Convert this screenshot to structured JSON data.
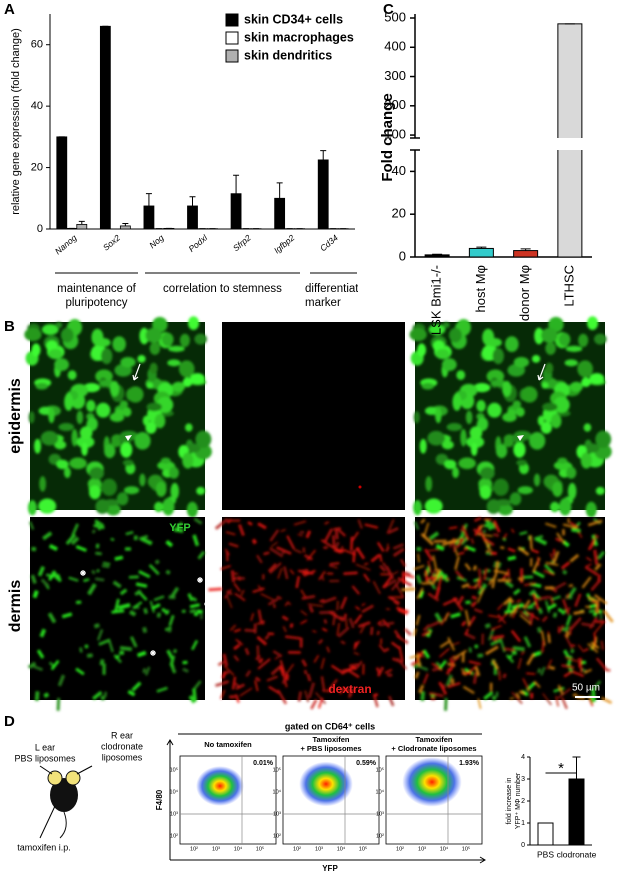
{
  "panel_labels": [
    "A",
    "B",
    "C",
    "D"
  ],
  "chart_data": [
    {
      "type": "bar",
      "ylabel": "relative gene expression (fold change)",
      "categories": [
        "Nanog",
        "Sox2",
        "Nog",
        "Podxl",
        "Sfrp2",
        "Igfbp2",
        "Cd34"
      ],
      "series": [
        {
          "name": "skin CD34+ cells",
          "color": "#000000",
          "values": [
            30,
            66,
            7.5,
            7.5,
            11.5,
            10,
            22.5
          ],
          "errors": [
            0,
            0,
            4,
            3,
            6,
            5,
            3
          ]
        },
        {
          "name": "skin macrophages",
          "color": "#ffffff",
          "values": [
            0.2,
            0,
            0.1,
            0.1,
            0.1,
            0.1,
            0.1
          ],
          "errors": [
            0,
            0,
            0,
            0,
            0,
            0,
            0
          ]
        },
        {
          "name": "skin dendritics",
          "color": "#b0b0b0",
          "values": [
            1.5,
            1,
            0.2,
            0.1,
            0.1,
            0.1,
            0.1
          ],
          "errors": [
            1,
            0.8,
            0,
            0,
            0,
            0,
            0
          ]
        }
      ],
      "ylim": [
        0,
        70
      ],
      "yticks": [
        0,
        20,
        40,
        60
      ],
      "groups": [
        [
          "maintenance of",
          "pluripotency"
        ],
        [
          "correlation to stemness"
        ],
        [
          "differentiation",
          "marker"
        ]
      ]
    },
    {
      "type": "bar",
      "ylabel": "Fold change",
      "categories": [
        "LSK Bmi1-/-",
        "host Mφ",
        "donor Mφ",
        "LTHSC"
      ],
      "values": [
        1,
        4,
        3,
        480
      ],
      "errors": [
        0.3,
        0.6,
        0.8,
        0
      ],
      "colors": [
        "#000000",
        "#33cccc",
        "#cc3322",
        "#d9d9d9"
      ],
      "ylim": [
        0,
        500
      ],
      "ybreak": [
        50,
        90
      ],
      "yticks": [
        0,
        20,
        40,
        100,
        200,
        300,
        400,
        500
      ]
    },
    {
      "type": "bar",
      "ylabel": [
        "fold increase in",
        "YFP⁺ MΦ number"
      ],
      "categories": [
        "PBS",
        "clodronate"
      ],
      "values": [
        1,
        3
      ],
      "errors": [
        0,
        1
      ],
      "colors": [
        "#ffffff",
        "#000000"
      ],
      "ylim": [
        0,
        4
      ],
      "yticks": [
        0,
        1,
        2,
        3,
        4
      ],
      "annotation": "*"
    }
  ],
  "microscopy": {
    "rows": [
      "epidermis",
      "dermis"
    ],
    "channels": [
      "YFP",
      "dextran"
    ],
    "scale_bar": "50 µm"
  },
  "mouse": {
    "left": [
      "L ear",
      "PBS liposomes"
    ],
    "right": [
      "R ear",
      "clodronate",
      "liposomes"
    ],
    "injection": "tamoxifen i.p."
  },
  "flow": {
    "title": "gated on CD64⁺ cells",
    "conditions": [
      [
        "No tamoxifen"
      ],
      [
        "Tamoxifen",
        "+ PBS liposomes"
      ],
      [
        "Tamoxifen",
        "+ Clodronate liposomes"
      ]
    ],
    "gates": [
      "0.01%",
      "0.59%",
      "1.93%"
    ],
    "ylabel": "F4/80",
    "xlabel": "YFP",
    "ticks": [
      "10²",
      "10³",
      "10⁴",
      "10⁵"
    ]
  }
}
